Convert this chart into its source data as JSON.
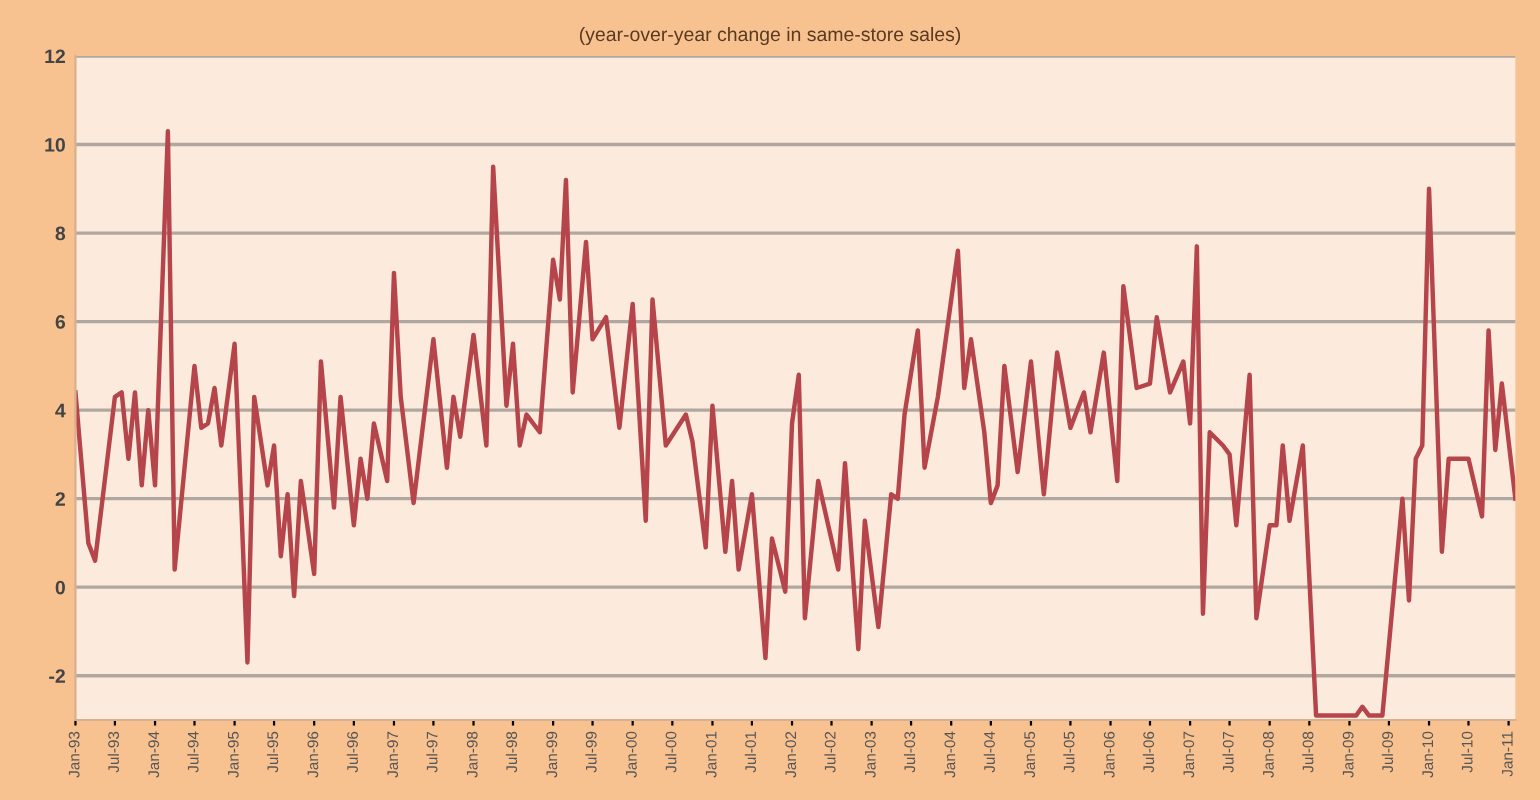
{
  "chart_data": {
    "type": "line",
    "subtitle": "(year-over-year change in same-store sales)",
    "series": [
      {
        "color": "#b5454a",
        "x": [
          "1993-01",
          "1993-03",
          "1993-04",
          "1993-07",
          "1993-08",
          "1993-09",
          "1993-10",
          "1993-11",
          "1993-12",
          "1994-01",
          "1994-03",
          "1994-04",
          "1994-07",
          "1994-08",
          "1994-09",
          "1994-10",
          "1994-11",
          "1995-01",
          "1995-02",
          "1995-03",
          "1995-04",
          "1995-06",
          "1995-07",
          "1995-08",
          "1995-09",
          "1995-10",
          "1995-11",
          "1996-01",
          "1996-02",
          "1996-04",
          "1996-05",
          "1996-07",
          "1996-08",
          "1996-09",
          "1996-10",
          "1996-12",
          "1997-01",
          "1997-02",
          "1997-04",
          "1997-07",
          "1997-09",
          "1997-10",
          "1997-11",
          "1998-01",
          "1998-03",
          "1998-04",
          "1998-06",
          "1998-07",
          "1998-08",
          "1998-09",
          "1998-11",
          "1999-01",
          "1999-02",
          "1999-03",
          "1999-04",
          "1999-06",
          "1999-07",
          "1999-09",
          "1999-11",
          "2000-01",
          "2000-03",
          "2000-04",
          "2000-06",
          "2000-09",
          "2000-10",
          "2000-12",
          "2001-01",
          "2001-03",
          "2001-04",
          "2001-05",
          "2001-07",
          "2001-09",
          "2001-10",
          "2001-12",
          "2002-01",
          "2002-02",
          "2002-03",
          "2002-05",
          "2002-08",
          "2002-09",
          "2002-11",
          "2002-12",
          "2003-02",
          "2003-04",
          "2003-05",
          "2003-06",
          "2003-08",
          "2003-09",
          "2003-11",
          "2004-02",
          "2004-03",
          "2004-04",
          "2004-06",
          "2004-07",
          "2004-08",
          "2004-09",
          "2004-11",
          "2005-01",
          "2005-03",
          "2005-05",
          "2005-07",
          "2005-09",
          "2005-10",
          "2005-12",
          "2006-02",
          "2006-03",
          "2006-05",
          "2006-07",
          "2006-08",
          "2006-10",
          "2006-12",
          "2007-01",
          "2007-02",
          "2007-03",
          "2007-04",
          "2007-06",
          "2007-07",
          "2007-08",
          "2007-10",
          "2007-11",
          "2008-01",
          "2008-02",
          "2008-03",
          "2008-04",
          "2008-06",
          "2008-08",
          "2009-02",
          "2009-03",
          "2009-04",
          "2009-06",
          "2009-09",
          "2009-10",
          "2009-11",
          "2009-12",
          "2010-01",
          "2010-03",
          "2010-04",
          "2010-07",
          "2010-09",
          "2010-10",
          "2010-11",
          "2010-12",
          "2011-02"
        ],
        "values": [
          4.4,
          1.0,
          0.6,
          4.3,
          4.4,
          2.9,
          4.4,
          2.3,
          4.0,
          2.3,
          10.3,
          0.4,
          5.0,
          3.6,
          3.7,
          4.5,
          3.2,
          5.5,
          1.8,
          -1.7,
          4.3,
          2.3,
          3.2,
          0.7,
          2.1,
          -0.2,
          2.4,
          0.3,
          5.1,
          1.8,
          4.3,
          1.4,
          2.9,
          2.0,
          3.7,
          2.4,
          7.1,
          4.3,
          1.9,
          5.6,
          2.7,
          4.3,
          3.4,
          5.7,
          3.2,
          9.5,
          4.1,
          5.5,
          3.2,
          3.9,
          3.5,
          7.4,
          6.5,
          9.2,
          4.4,
          7.8,
          5.6,
          6.1,
          3.6,
          6.4,
          1.5,
          6.5,
          3.2,
          3.9,
          3.3,
          0.9,
          4.1,
          0.8,
          2.4,
          0.4,
          2.1,
          -1.6,
          1.1,
          -0.1,
          3.7,
          4.8,
          -0.7,
          2.4,
          0.4,
          2.8,
          -1.4,
          1.5,
          -0.9,
          2.1,
          2.0,
          3.9,
          5.8,
          2.7,
          4.3,
          7.6,
          4.5,
          5.6,
          3.5,
          1.9,
          2.3,
          5.0,
          2.6,
          5.1,
          2.1,
          5.3,
          3.6,
          4.4,
          3.5,
          5.3,
          2.4,
          6.8,
          4.5,
          4.6,
          6.1,
          4.4,
          5.1,
          3.7,
          7.7,
          -0.6,
          3.5,
          3.2,
          3.0,
          1.4,
          4.8,
          -0.7,
          1.4,
          1.4,
          3.2,
          1.5,
          3.2,
          -2.9,
          -2.9,
          -2.7,
          -2.9,
          -2.9,
          2.0,
          -0.3,
          2.9,
          3.2,
          9.0,
          0.8,
          2.9,
          2.9,
          1.6,
          5.8,
          3.1,
          4.6,
          2.0
        ]
      }
    ],
    "xlim": [
      "1993-01",
      "2011-02"
    ],
    "xticks": [
      {
        "value": "1993-01",
        "label": "Jan-93"
      },
      {
        "value": "1993-07",
        "label": "Jul-93"
      },
      {
        "value": "1994-01",
        "label": "Jan-94"
      },
      {
        "value": "1994-07",
        "label": "Jul-94"
      },
      {
        "value": "1995-01",
        "label": "Jan-95"
      },
      {
        "value": "1995-07",
        "label": "Jul-95"
      },
      {
        "value": "1996-01",
        "label": "Jan-96"
      },
      {
        "value": "1996-07",
        "label": "Jul-96"
      },
      {
        "value": "1997-01",
        "label": "Jan-97"
      },
      {
        "value": "1997-07",
        "label": "Jul-97"
      },
      {
        "value": "1998-01",
        "label": "Jan-98"
      },
      {
        "value": "1998-07",
        "label": "Jul-98"
      },
      {
        "value": "1999-01",
        "label": "Jan-99"
      },
      {
        "value": "1999-07",
        "label": "Jul-99"
      },
      {
        "value": "2000-01",
        "label": "Jan-00"
      },
      {
        "value": "2000-07",
        "label": "Jul-00"
      },
      {
        "value": "2001-01",
        "label": "Jan-01"
      },
      {
        "value": "2001-07",
        "label": "Jul-01"
      },
      {
        "value": "2002-01",
        "label": "Jan-02"
      },
      {
        "value": "2002-07",
        "label": "Jul-02"
      },
      {
        "value": "2003-01",
        "label": "Jan-03"
      },
      {
        "value": "2003-07",
        "label": "Jul-03"
      },
      {
        "value": "2004-01",
        "label": "Jan-04"
      },
      {
        "value": "2004-07",
        "label": "Jul-04"
      },
      {
        "value": "2005-01",
        "label": "Jan-05"
      },
      {
        "value": "2005-07",
        "label": "Jul-05"
      },
      {
        "value": "2006-01",
        "label": "Jan-06"
      },
      {
        "value": "2006-07",
        "label": "Jul-06"
      },
      {
        "value": "2007-01",
        "label": "Jan-07"
      },
      {
        "value": "2007-07",
        "label": "Jul-07"
      },
      {
        "value": "2008-01",
        "label": "Jan-08"
      },
      {
        "value": "2008-07",
        "label": "Jul-08"
      },
      {
        "value": "2009-01",
        "label": "Jan-09"
      },
      {
        "value": "2009-07",
        "label": "Jul-09"
      },
      {
        "value": "2010-01",
        "label": "Jan-10"
      },
      {
        "value": "2010-07",
        "label": "Jul-10"
      },
      {
        "value": "2011-01",
        "label": "Jan-11"
      }
    ],
    "ylim": [
      -3,
      12
    ],
    "yticks": [
      -2,
      0,
      2,
      4,
      6,
      8,
      10,
      12
    ],
    "grid": "y",
    "legend": false,
    "marker": "none",
    "line_style": "solid"
  }
}
